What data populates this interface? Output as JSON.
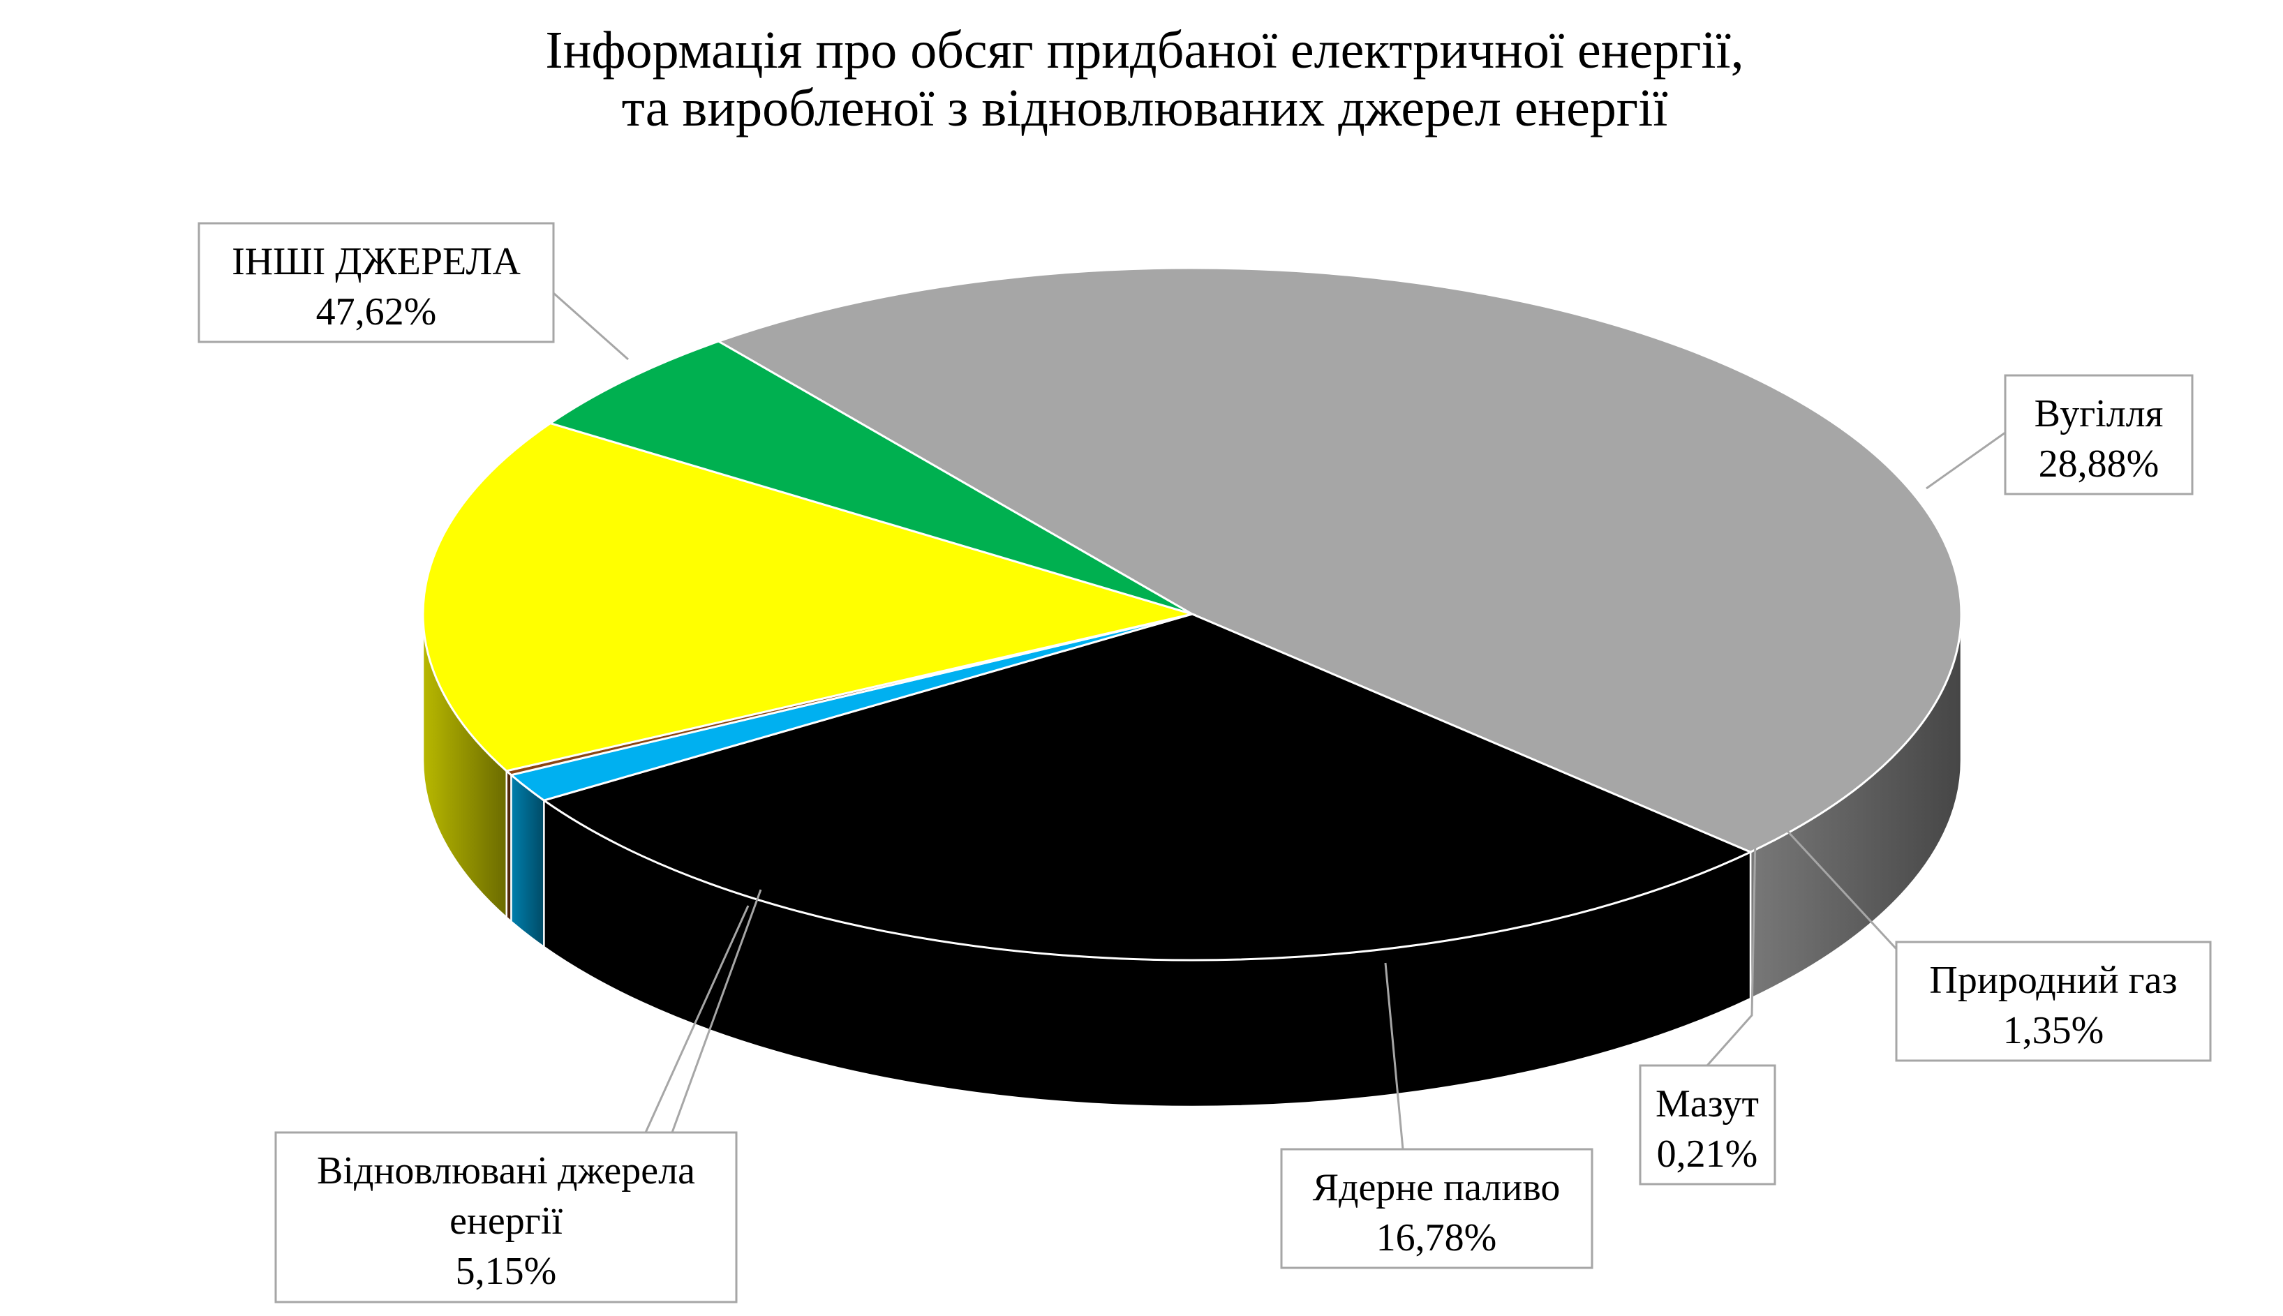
{
  "chart_data": {
    "type": "pie",
    "title_lines": [
      "Інформація про обсяг придбаної електричної енергії,",
      "та виробленої з відновлюваних джерел енергії"
    ],
    "slices": [
      {
        "name": "ІНШІ ДЖЕРЕЛА",
        "value": 47.62,
        "value_label": "47,62%",
        "color": "#a6a6a6"
      },
      {
        "name": "Вугілля",
        "value": 28.88,
        "value_label": "28,88%",
        "color": "#000000"
      },
      {
        "name": "Природний газ",
        "value": 1.35,
        "value_label": "1,35%",
        "color": "#00b0f0"
      },
      {
        "name": "Мазут",
        "value": 0.21,
        "value_label": "0,21%",
        "color": "#8b4513"
      },
      {
        "name": "Ядерне паливо",
        "value": 16.78,
        "value_label": "16,78%",
        "color": "#ffff00"
      },
      {
        "name": "Відновлювані джерела енергії",
        "name_lines": [
          "Відновлювані джерела",
          "енергії"
        ],
        "value": 5.15,
        "value_label": "5,15%",
        "color": "#00b050"
      }
    ],
    "style": "3d"
  }
}
